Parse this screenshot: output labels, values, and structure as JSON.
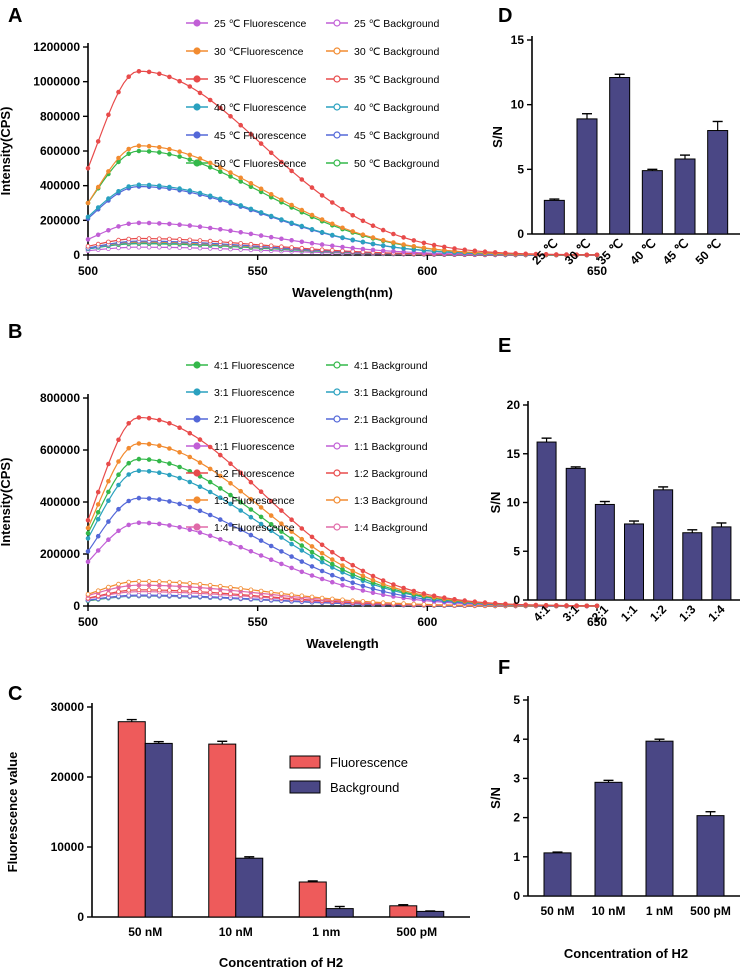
{
  "chart_data": [
    {
      "panel": "A",
      "type": "line",
      "xlabel": "Wavelength(nm)",
      "ylabel": "Intensity(CPS)",
      "xlim": [
        500,
        650
      ],
      "ylim": [
        0,
        1200000
      ],
      "xticks": [
        500,
        550,
        600,
        650
      ],
      "yticks": [
        0,
        200000,
        400000,
        600000,
        800000,
        1000000,
        1200000
      ],
      "series": [
        {
          "name": "25 ℃ Fluorescence",
          "color": "#c15fd6",
          "hollow": false,
          "peak": 185000,
          "start": 90000
        },
        {
          "name": "25 ℃ Background",
          "color": "#c15fd6",
          "hollow": true,
          "peak": 45000,
          "start": 25000
        },
        {
          "name": "30 ℃Fluorescence",
          "color": "#f28b30",
          "hollow": false,
          "peak": 630000,
          "start": 300000
        },
        {
          "name": "30 ℃ Background",
          "color": "#f28b30",
          "hollow": true,
          "peak": 75000,
          "start": 40000
        },
        {
          "name": "35 ℃ Fluorescence",
          "color": "#e84b4b",
          "hollow": false,
          "peak": 1060000,
          "start": 500000
        },
        {
          "name": "35 ℃ Background",
          "color": "#e84b4b",
          "hollow": true,
          "peak": 95000,
          "start": 50000
        },
        {
          "name": "40 ℃ Fluorescence",
          "color": "#2aa1bf",
          "hollow": false,
          "peak": 405000,
          "start": 220000
        },
        {
          "name": "40 ℃ Background",
          "color": "#2aa1bf",
          "hollow": true,
          "peak": 70000,
          "start": 35000
        },
        {
          "name": "45 ℃ Fluorescence",
          "color": "#5468d8",
          "hollow": false,
          "peak": 395000,
          "start": 210000
        },
        {
          "name": "45 ℃ Background",
          "color": "#5468d8",
          "hollow": true,
          "peak": 80000,
          "start": 40000
        },
        {
          "name": "50 ℃ Fluorescence",
          "color": "#34b84a",
          "hollow": false,
          "peak": 600000,
          "start": 300000
        },
        {
          "name": "50 ℃ Background",
          "color": "#34b84a",
          "hollow": true,
          "peak": 65000,
          "start": 35000
        }
      ]
    },
    {
      "panel": "B",
      "type": "line",
      "xlabel": "Wavelength",
      "ylabel": "Intensity(CPS)",
      "xlim": [
        500,
        650
      ],
      "ylim": [
        0,
        800000
      ],
      "xticks": [
        500,
        550,
        600,
        650
      ],
      "yticks": [
        0,
        200000,
        400000,
        600000,
        800000
      ],
      "series": [
        {
          "name": "4:1 Fluorescence",
          "color": "#34b84a",
          "hollow": false,
          "peak": 565000,
          "start": 280000
        },
        {
          "name": "4:1 Background",
          "color": "#34b84a",
          "hollow": true,
          "peak": 40000,
          "start": 20000
        },
        {
          "name": "3:1 Fluorescence",
          "color": "#2aa1bf",
          "hollow": false,
          "peak": 520000,
          "start": 260000
        },
        {
          "name": "3:1 Background",
          "color": "#2aa1bf",
          "hollow": true,
          "peak": 38000,
          "start": 20000
        },
        {
          "name": "2:1 Fluorescence",
          "color": "#5468d8",
          "hollow": false,
          "peak": 415000,
          "start": 210000
        },
        {
          "name": "2:1 Background",
          "color": "#5468d8",
          "hollow": true,
          "peak": 42000,
          "start": 22000
        },
        {
          "name": "1:1 Fluorescence",
          "color": "#c15fd6",
          "hollow": false,
          "peak": 320000,
          "start": 170000
        },
        {
          "name": "1:1 Background",
          "color": "#c15fd6",
          "hollow": true,
          "peak": 40000,
          "start": 22000
        },
        {
          "name": "1:2 Fluorescence",
          "color": "#e84b4b",
          "hollow": false,
          "peak": 725000,
          "start": 330000
        },
        {
          "name": "1:2 Background",
          "color": "#e84b4b",
          "hollow": true,
          "peak": 62000,
          "start": 30000
        },
        {
          "name": "1:3 Fluorescence",
          "color": "#f28b30",
          "hollow": false,
          "peak": 625000,
          "start": 300000
        },
        {
          "name": "1:3 Background",
          "color": "#f28b30",
          "hollow": true,
          "peak": 95000,
          "start": 45000
        },
        {
          "name": "1:4 Fluorescence",
          "color": "#e06aa8",
          "hollow": false,
          "peak": 80000,
          "start": 40000
        },
        {
          "name": "1:4 Background",
          "color": "#e06aa8",
          "hollow": true,
          "peak": 55000,
          "start": 28000
        }
      ]
    },
    {
      "panel": "C",
      "type": "bar",
      "xlabel": "Concentration of H2",
      "ylabel": "Fluorescence value",
      "ylim": [
        0,
        30000
      ],
      "yticks": [
        0,
        10000,
        20000,
        30000
      ],
      "categories": [
        "50 nM",
        "10 nM",
        "1 nm",
        "500 pM"
      ],
      "series": [
        {
          "name": "Fluorescence",
          "color": "#ee5b5b",
          "values": [
            27900,
            24700,
            5000,
            1600
          ],
          "errors": [
            300,
            400,
            150,
            150
          ]
        },
        {
          "name": "Background",
          "color": "#4a4785",
          "values": [
            24800,
            8400,
            1200,
            800
          ],
          "errors": [
            250,
            200,
            300,
            60
          ]
        }
      ]
    },
    {
      "panel": "D",
      "type": "bar",
      "ylabel": "S/N",
      "ylim": [
        0,
        15
      ],
      "yticks": [
        0,
        5,
        10,
        15
      ],
      "categories": [
        "25 ℃",
        "30 ℃",
        "35 ℃",
        "40 ℃",
        "45 ℃",
        "50 ℃"
      ],
      "series": [
        {
          "name": "S/N",
          "color": "#4a4785",
          "values": [
            2.6,
            8.9,
            12.1,
            4.9,
            5.8,
            8.0
          ],
          "errors": [
            0.1,
            0.4,
            0.25,
            0.1,
            0.3,
            0.7
          ]
        }
      ]
    },
    {
      "panel": "E",
      "type": "bar",
      "ylabel": "S/N",
      "ylim": [
        0,
        20
      ],
      "yticks": [
        0,
        5,
        10,
        15,
        20
      ],
      "categories": [
        "4:1",
        "3:1",
        "2:1",
        "1:1",
        "1:2",
        "1:3",
        "1:4"
      ],
      "series": [
        {
          "name": "S/N",
          "color": "#4a4785",
          "values": [
            16.2,
            13.5,
            9.8,
            7.8,
            11.3,
            6.9,
            7.5
          ],
          "errors": [
            0.4,
            0.15,
            0.3,
            0.3,
            0.3,
            0.3,
            0.4
          ]
        }
      ]
    },
    {
      "panel": "F",
      "type": "bar",
      "xlabel": "Concentration of H2",
      "ylabel": "S/N",
      "ylim": [
        0,
        5
      ],
      "yticks": [
        0,
        1,
        2,
        3,
        4,
        5
      ],
      "categories": [
        "50 nM",
        "10 nM",
        "1 nM",
        "500 pM"
      ],
      "series": [
        {
          "name": "S/N",
          "color": "#4a4785",
          "values": [
            1.1,
            2.9,
            3.95,
            2.05
          ],
          "errors": [
            0.02,
            0.05,
            0.05,
            0.1
          ]
        }
      ]
    }
  ]
}
